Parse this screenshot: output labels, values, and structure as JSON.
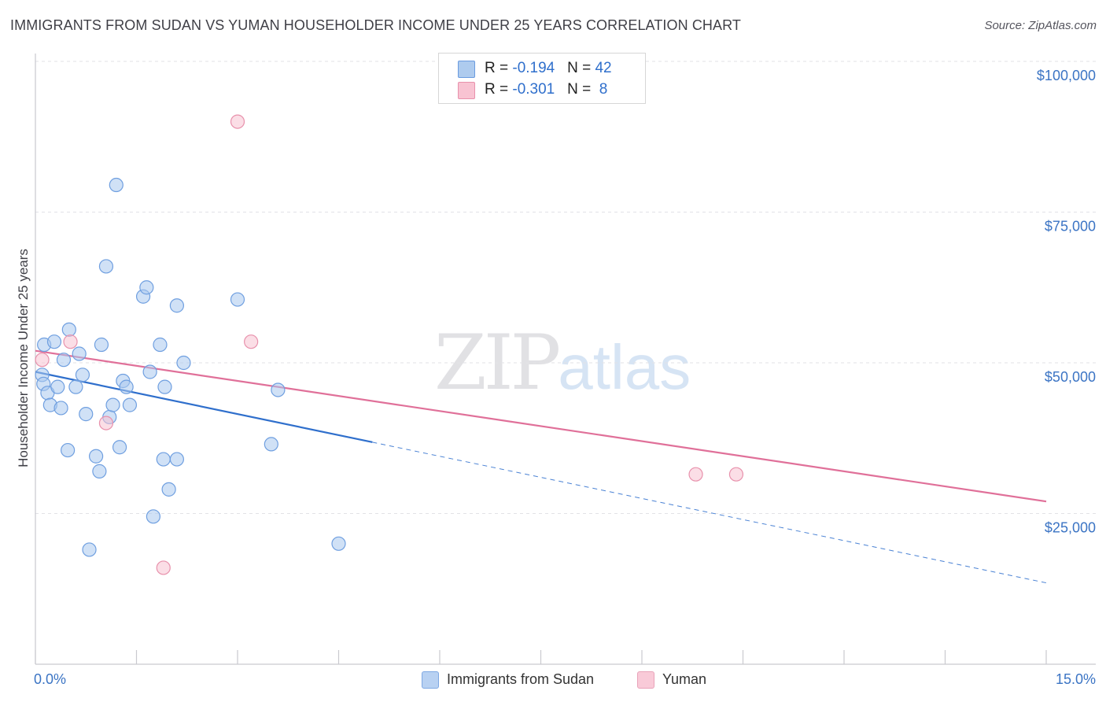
{
  "header": {
    "title": "IMMIGRANTS FROM SUDAN VS YUMAN HOUSEHOLDER INCOME UNDER 25 YEARS CORRELATION CHART",
    "source": "Source: ZipAtlas.com"
  },
  "watermark": {
    "zip": "ZIP",
    "atlas": "atlas"
  },
  "legend": {
    "rows": [
      {
        "r_label": "R = ",
        "r_value": "-0.194",
        "n_label": "N = ",
        "n_value": "42",
        "color": "#aecbee",
        "border": "#6a9be0"
      },
      {
        "r_label": "R = ",
        "r_value": "-0.301",
        "n_label": "N = ",
        "n_value": " 8",
        "color": "#f8c3d2",
        "border": "#e891ac"
      }
    ]
  },
  "bottom_legend": {
    "items": [
      {
        "label": "Immigrants from Sudan",
        "color": "#b8d1f2",
        "border": "#7ea8e3"
      },
      {
        "label": "Yuman",
        "color": "#f9cad8",
        "border": "#e9a2b9"
      }
    ]
  },
  "chart_data": {
    "type": "scatter",
    "title": "IMMIGRANTS FROM SUDAN VS YUMAN HOUSEHOLDER INCOME UNDER 25 YEARS CORRELATION CHART",
    "xlabel": "",
    "ylabel": "Householder Income Under 25 years",
    "xlim": [
      0,
      15
    ],
    "ylim": [
      0,
      102500
    ],
    "x_tick_labels": {
      "min": "0.0%",
      "max": "15.0%"
    },
    "y_ticks": [
      {
        "value": 25000,
        "label": "$25,000"
      },
      {
        "value": 50000,
        "label": "$50,000"
      },
      {
        "value": 75000,
        "label": "$75,000"
      },
      {
        "value": 100000,
        "label": "$100,000"
      }
    ],
    "series": [
      {
        "name": "Immigrants from Sudan",
        "color": "#aac8ef",
        "edge": "#6f9fe0",
        "points": [
          [
            0.1,
            48000
          ],
          [
            0.12,
            46500
          ],
          [
            0.13,
            53000
          ],
          [
            0.18,
            45000
          ],
          [
            0.22,
            43000
          ],
          [
            0.28,
            53500
          ],
          [
            0.33,
            46000
          ],
          [
            0.38,
            42500
          ],
          [
            0.42,
            50500
          ],
          [
            0.48,
            35500
          ],
          [
            0.5,
            55500
          ],
          [
            0.6,
            46000
          ],
          [
            0.65,
            51500
          ],
          [
            0.7,
            48000
          ],
          [
            0.75,
            41500
          ],
          [
            0.8,
            19000
          ],
          [
            0.9,
            34500
          ],
          [
            0.95,
            32000
          ],
          [
            0.98,
            53000
          ],
          [
            1.05,
            66000
          ],
          [
            1.1,
            41000
          ],
          [
            1.15,
            43000
          ],
          [
            1.2,
            79500
          ],
          [
            1.25,
            36000
          ],
          [
            1.3,
            47000
          ],
          [
            1.35,
            46000
          ],
          [
            1.4,
            43000
          ],
          [
            1.6,
            61000
          ],
          [
            1.65,
            62500
          ],
          [
            1.7,
            48500
          ],
          [
            1.75,
            24500
          ],
          [
            1.85,
            53000
          ],
          [
            1.9,
            34000
          ],
          [
            1.92,
            46000
          ],
          [
            1.98,
            29000
          ],
          [
            2.1,
            34000
          ],
          [
            2.1,
            59500
          ],
          [
            2.2,
            50000
          ],
          [
            3.0,
            60500
          ],
          [
            3.5,
            36500
          ],
          [
            3.6,
            45500
          ],
          [
            4.5,
            20000
          ]
        ],
        "trend": {
          "x_start": 0,
          "y_start": 48500,
          "x_solid_end": 5.0,
          "x_end": 15.0,
          "y_end": 13500
        }
      },
      {
        "name": "Yuman",
        "color": "#f8c3d2",
        "edge": "#e891ac",
        "points": [
          [
            0.1,
            50500
          ],
          [
            0.52,
            53500
          ],
          [
            1.05,
            40000
          ],
          [
            1.9,
            16000
          ],
          [
            3.0,
            90000
          ],
          [
            3.2,
            53500
          ],
          [
            9.8,
            31500
          ],
          [
            10.4,
            31500
          ]
        ],
        "trend": {
          "x_start": 0,
          "y_start": 52000,
          "x_end": 15.0,
          "y_end": 27000
        }
      }
    ],
    "grid": true
  }
}
